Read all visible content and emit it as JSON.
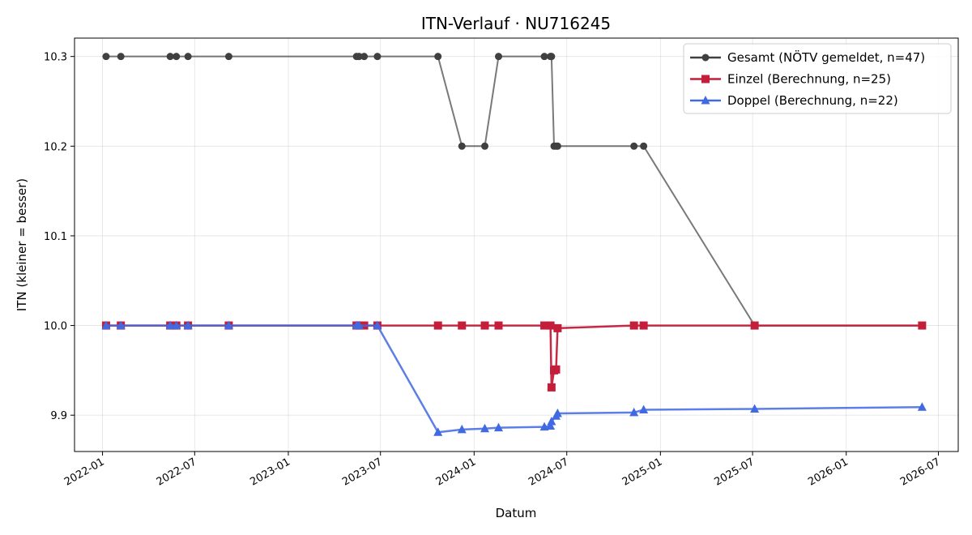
{
  "chart_data": {
    "type": "line",
    "title": "ITN-Verlauf · NU716245",
    "xlabel": "Datum",
    "ylabel": "ITN  (kleiner = besser)",
    "x_axis_type": "date",
    "xlim": [
      "2021-11-07",
      "2026-08-09"
    ],
    "ylim": [
      9.8595,
      10.3205
    ],
    "x_ticks": [
      "2022-01",
      "2022-07",
      "2023-01",
      "2023-07",
      "2024-01",
      "2024-07",
      "2025-01",
      "2025-07",
      "2026-01",
      "2026-07"
    ],
    "y_ticks": [
      9.9,
      10.0,
      10.1,
      10.2,
      10.3
    ],
    "grid": true,
    "legend_position": "top-right",
    "series": [
      {
        "name": "Gesamt (NÖTV gemeldet, n=47)",
        "color": "#404040",
        "marker": "circle",
        "points": [
          {
            "x": "2022-01-08",
            "y": 10.3
          },
          {
            "x": "2022-02-06",
            "y": 10.3
          },
          {
            "x": "2022-05-14",
            "y": 10.3
          },
          {
            "x": "2022-05-26",
            "y": 10.3
          },
          {
            "x": "2022-06-18",
            "y": 10.3
          },
          {
            "x": "2022-09-06",
            "y": 10.3
          },
          {
            "x": "2023-05-15",
            "y": 10.3
          },
          {
            "x": "2023-05-20",
            "y": 10.3
          },
          {
            "x": "2023-05-30",
            "y": 10.3
          },
          {
            "x": "2023-06-25",
            "y": 10.3
          },
          {
            "x": "2023-10-22",
            "y": 10.3
          },
          {
            "x": "2023-12-08",
            "y": 10.2
          },
          {
            "x": "2024-01-22",
            "y": 10.2
          },
          {
            "x": "2024-02-18",
            "y": 10.3
          },
          {
            "x": "2024-05-18",
            "y": 10.3
          },
          {
            "x": "2024-05-30",
            "y": 10.3
          },
          {
            "x": "2024-06-01",
            "y": 10.3
          },
          {
            "x": "2024-06-06",
            "y": 10.2
          },
          {
            "x": "2024-06-10",
            "y": 10.2
          },
          {
            "x": "2024-06-13",
            "y": 10.2
          },
          {
            "x": "2024-11-10",
            "y": 10.2
          },
          {
            "x": "2024-11-29",
            "y": 10.2
          },
          {
            "x": "2025-07-05",
            "y": 10.0
          },
          {
            "x": "2026-05-30",
            "y": 10.0
          }
        ]
      },
      {
        "name": "Einzel (Berechnung, n=25)",
        "color": "#c41e3a",
        "marker": "square",
        "points": [
          {
            "x": "2022-01-08",
            "y": 10.0
          },
          {
            "x": "2022-02-06",
            "y": 10.0
          },
          {
            "x": "2022-05-14",
            "y": 10.0
          },
          {
            "x": "2022-05-26",
            "y": 10.0
          },
          {
            "x": "2022-06-18",
            "y": 10.0
          },
          {
            "x": "2022-09-06",
            "y": 10.0
          },
          {
            "x": "2023-05-15",
            "y": 10.0
          },
          {
            "x": "2023-05-20",
            "y": 10.0
          },
          {
            "x": "2023-05-30",
            "y": 10.0
          },
          {
            "x": "2023-06-25",
            "y": 10.0
          },
          {
            "x": "2023-10-22",
            "y": 10.0
          },
          {
            "x": "2023-12-08",
            "y": 10.0
          },
          {
            "x": "2024-01-22",
            "y": 10.0
          },
          {
            "x": "2024-02-18",
            "y": 10.0
          },
          {
            "x": "2024-05-18",
            "y": 10.0
          },
          {
            "x": "2024-05-30",
            "y": 10.0
          },
          {
            "x": "2024-06-01",
            "y": 9.931
          },
          {
            "x": "2024-06-06",
            "y": 9.95
          },
          {
            "x": "2024-06-10",
            "y": 9.951
          },
          {
            "x": "2024-06-13",
            "y": 9.997
          },
          {
            "x": "2024-11-10",
            "y": 10.0
          },
          {
            "x": "2024-11-29",
            "y": 10.0
          },
          {
            "x": "2025-07-05",
            "y": 10.0
          },
          {
            "x": "2026-05-30",
            "y": 10.0
          }
        ]
      },
      {
        "name": "Doppel (Berechnung, n=22)",
        "color": "#4169e1",
        "marker": "triangle",
        "points": [
          {
            "x": "2022-01-08",
            "y": 10.0
          },
          {
            "x": "2022-02-06",
            "y": 10.0
          },
          {
            "x": "2022-05-14",
            "y": 10.0
          },
          {
            "x": "2022-05-26",
            "y": 10.0
          },
          {
            "x": "2022-06-18",
            "y": 10.0
          },
          {
            "x": "2022-09-06",
            "y": 10.0
          },
          {
            "x": "2023-05-15",
            "y": 10.0
          },
          {
            "x": "2023-05-20",
            "y": 10.0
          },
          {
            "x": "2023-06-25",
            "y": 10.0
          },
          {
            "x": "2023-10-22",
            "y": 9.881
          },
          {
            "x": "2023-12-08",
            "y": 9.884
          },
          {
            "x": "2024-01-22",
            "y": 9.885
          },
          {
            "x": "2024-02-18",
            "y": 9.886
          },
          {
            "x": "2024-05-18",
            "y": 9.887
          },
          {
            "x": "2024-05-30",
            "y": 9.888
          },
          {
            "x": "2024-06-01",
            "y": 9.893
          },
          {
            "x": "2024-06-10",
            "y": 9.899
          },
          {
            "x": "2024-06-13",
            "y": 9.902
          },
          {
            "x": "2024-11-10",
            "y": 9.903
          },
          {
            "x": "2024-11-29",
            "y": 9.906
          },
          {
            "x": "2025-07-05",
            "y": 9.907
          },
          {
            "x": "2026-05-30",
            "y": 9.909
          }
        ]
      }
    ]
  }
}
